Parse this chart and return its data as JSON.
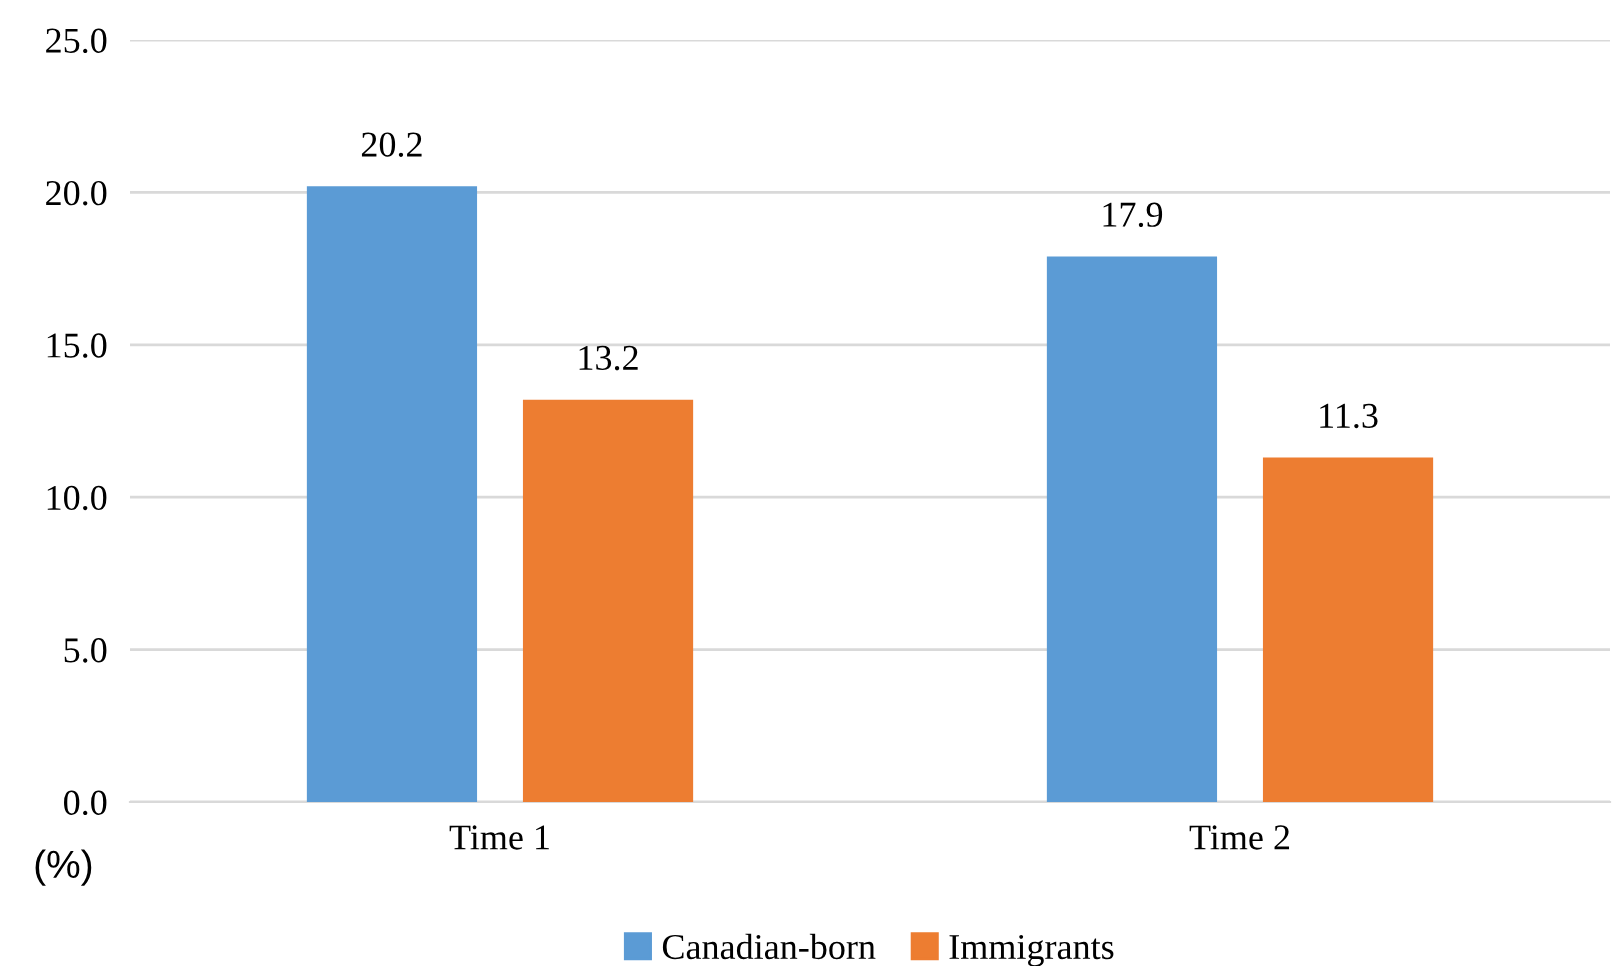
{
  "chart_data": {
    "type": "bar",
    "categories": [
      "Time 1",
      "Time 2"
    ],
    "series": [
      {
        "name": "Canadian-born",
        "color": "#5b9bd5",
        "values": [
          20.2,
          17.9
        ]
      },
      {
        "name": "Immigrants",
        "color": "#ed7d31",
        "values": [
          13.2,
          11.3
        ]
      }
    ],
    "ylabel": "(%)",
    "ylim": [
      0,
      25
    ],
    "yticks": [
      {
        "value": 0,
        "label": "0.0"
      },
      {
        "value": 5,
        "label": "5.0"
      },
      {
        "value": 10,
        "label": "10.0"
      },
      {
        "value": 15,
        "label": "15.0"
      },
      {
        "value": 20,
        "label": "20.0"
      },
      {
        "value": 25,
        "label": "25.0"
      }
    ],
    "grid": "y",
    "legend": "bottom",
    "data_labels": true
  }
}
